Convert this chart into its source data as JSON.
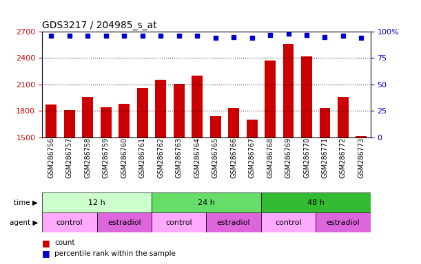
{
  "title": "GDS3217 / 204985_s_at",
  "samples": [
    "GSM286756",
    "GSM286757",
    "GSM286758",
    "GSM286759",
    "GSM286760",
    "GSM286761",
    "GSM286762",
    "GSM286763",
    "GSM286764",
    "GSM286765",
    "GSM286766",
    "GSM286767",
    "GSM286768",
    "GSM286769",
    "GSM286770",
    "GSM286771",
    "GSM286772",
    "GSM286773"
  ],
  "counts": [
    1870,
    1810,
    1960,
    1840,
    1880,
    2060,
    2150,
    2110,
    2200,
    1740,
    1830,
    1700,
    2370,
    2560,
    2420,
    1830,
    1960,
    1510
  ],
  "percentiles": [
    96,
    96,
    96,
    96,
    96,
    96,
    96,
    96,
    96,
    94,
    95,
    94,
    97,
    98,
    97,
    95,
    96,
    94
  ],
  "bar_color": "#cc0000",
  "dot_color": "#0000cc",
  "ylim_left": [
    1500,
    2700
  ],
  "ylim_right": [
    0,
    100
  ],
  "yticks_left": [
    1500,
    1800,
    2100,
    2400,
    2700
  ],
  "yticks_right": [
    0,
    25,
    50,
    75,
    100
  ],
  "time_groups": [
    {
      "label": "12 h",
      "start": 0,
      "end": 6,
      "color": "#ccffcc"
    },
    {
      "label": "24 h",
      "start": 6,
      "end": 12,
      "color": "#66dd66"
    },
    {
      "label": "48 h",
      "start": 12,
      "end": 18,
      "color": "#33bb33"
    }
  ],
  "agent_groups": [
    {
      "label": "control",
      "start": 0,
      "end": 3,
      "color": "#ffaaff"
    },
    {
      "label": "estradiol",
      "start": 3,
      "end": 6,
      "color": "#dd66dd"
    },
    {
      "label": "control",
      "start": 6,
      "end": 9,
      "color": "#ffaaff"
    },
    {
      "label": "estradiol",
      "start": 9,
      "end": 12,
      "color": "#dd66dd"
    },
    {
      "label": "control",
      "start": 12,
      "end": 15,
      "color": "#ffaaff"
    },
    {
      "label": "estradiol",
      "start": 15,
      "end": 18,
      "color": "#dd66dd"
    }
  ],
  "xlabel_fontsize": 7,
  "title_fontsize": 10,
  "tick_label_color_left": "#cc0000",
  "tick_label_color_right": "#0000cc",
  "background_color": "#ffffff"
}
